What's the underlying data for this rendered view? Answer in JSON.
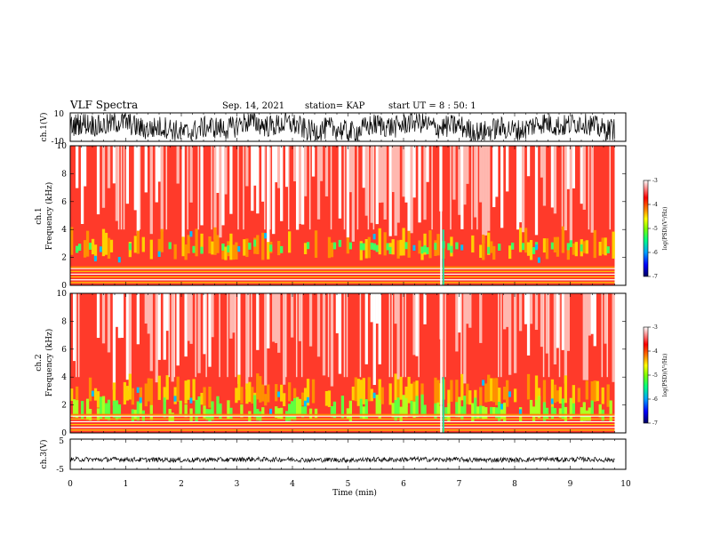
{
  "header": {
    "title": "VLF Spectra",
    "date": "Sep. 14, 2021",
    "station": "station= KAP",
    "start": "start  UT =   8  : 50: 1"
  },
  "chart_data": {
    "type": "heatmap",
    "xlabel": "Time  (min)",
    "xlim": [
      0,
      10
    ],
    "xticks": [
      "0",
      "1",
      "2",
      "3",
      "4",
      "5",
      "6",
      "7",
      "8",
      "9",
      "10"
    ],
    "data_end_min": 9.8,
    "panels": [
      {
        "id": "ch1-waveform",
        "type": "line",
        "ylabel": "ch.1(V)",
        "ylim": [
          -10,
          10
        ],
        "yticks": [
          "10",
          "-10"
        ],
        "series": [
          {
            "values": [
              3,
              5,
              -4,
              2,
              6,
              -3,
              4,
              1,
              -5,
              3
            ]
          }
        ]
      },
      {
        "id": "ch1-spectrogram",
        "type": "heatmap",
        "ylabel": "ch.1",
        "ylabel2": "Frequency  (kHz)",
        "ylim": [
          0,
          10
        ],
        "yticks": [
          "0",
          "2",
          "4",
          "6",
          "8",
          "10"
        ],
        "colorbar": {
          "label": "log(PSD)(V²/Hz)",
          "range": [
            -7,
            -3
          ],
          "ticks": [
            "-3",
            "-4",
            "-5",
            "-6",
            "-7"
          ]
        }
      },
      {
        "id": "ch2-spectrogram",
        "type": "heatmap",
        "ylabel": "ch.2",
        "ylabel2": "Frequency  (kHz)",
        "ylim": [
          0,
          10
        ],
        "yticks": [
          "0",
          "2",
          "4",
          "6",
          "8",
          "10"
        ],
        "colorbar": {
          "label": "log(PSD)(V²/Hz)",
          "range": [
            -7,
            -3
          ],
          "ticks": [
            "-3",
            "-4",
            "-5",
            "-6",
            "-7"
          ]
        }
      },
      {
        "id": "ch3-waveform",
        "type": "line",
        "ylabel": "ch.3(V)",
        "ylim": [
          -5,
          5
        ],
        "yticks": [
          "5",
          "-5"
        ],
        "series": [
          {
            "values": [
              -1.8,
              -1.9,
              -1.8,
              -1.7,
              -1.8,
              -1.9,
              -1.8,
              -1.8,
              -1.9,
              -1.8
            ]
          }
        ]
      }
    ],
    "colormap": [
      "#000080",
      "#0000ff",
      "#00a0ff",
      "#00ff80",
      "#80ff00",
      "#ffff00",
      "#ff8000",
      "#ff0000",
      "#ffffff"
    ]
  }
}
